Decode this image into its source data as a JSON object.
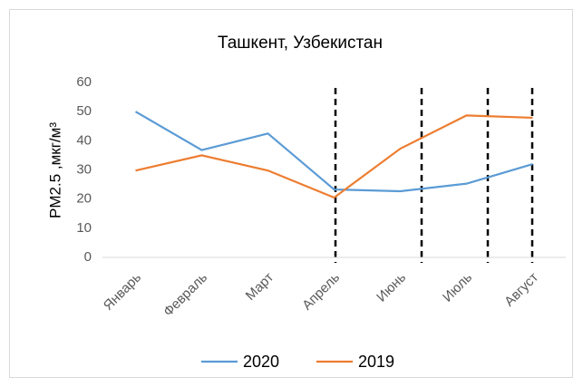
{
  "chart_data": {
    "type": "line",
    "title": "Ташкент, Узбекистан",
    "ylabel": "PM2.5 ,мкг/м³",
    "categories": [
      "Январь",
      "Февраль",
      "Март",
      "Апрель",
      "Июнь",
      "Июль",
      "Август"
    ],
    "series": [
      {
        "name": "2020",
        "color": "#5b9bd5",
        "values": [
          50,
          36.8,
          42.5,
          23.3,
          22.7,
          25.3,
          32
        ]
      },
      {
        "name": "2019",
        "color": "#ed7d31",
        "values": [
          29.8,
          35,
          29.8,
          20.5,
          37.3,
          48.7,
          47.9
        ]
      }
    ],
    "ylim": [
      0,
      60
    ],
    "yticks": [
      0,
      10,
      20,
      30,
      40,
      50,
      60
    ],
    "grid": false,
    "legend": "bottom"
  }
}
